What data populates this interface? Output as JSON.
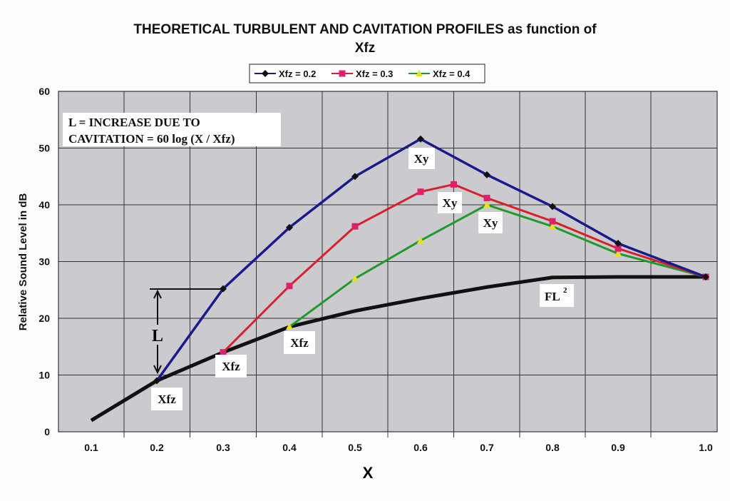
{
  "chart_data": {
    "type": "line",
    "title": "THEORETICAL TURBULENT AND CAVITATION PROFILES as function of",
    "title_line2": "Xfz",
    "xlabel": "X",
    "ylabel": "Relative Sound Level in dB",
    "ylim": [
      0,
      60
    ],
    "yticks": [
      "0",
      "10",
      "20",
      "30",
      "40",
      "50",
      "60"
    ],
    "xticks": [
      "0.1",
      "0.2",
      "0.3",
      "0.4",
      "0.5",
      "0.6",
      "0.7",
      "0.8",
      "0.9",
      "1.0"
    ],
    "grid": true,
    "legend_position": "top-center",
    "series": [
      {
        "name": "Xfz = 0.2",
        "color": "#1a1a8c",
        "marker": "diamond",
        "x": [
          0.2,
          0.3,
          0.4,
          0.5,
          0.6,
          0.7,
          0.8,
          0.9,
          1.0
        ],
        "y": [
          9,
          25.2,
          36,
          45,
          51.6,
          45.3,
          39.7,
          33.2,
          27.3
        ]
      },
      {
        "name": "Xfz = 0.3",
        "color": "#d8202a",
        "marker": "square",
        "x": [
          0.3,
          0.4,
          0.5,
          0.6,
          0.65,
          0.7,
          0.8,
          0.9,
          1.0
        ],
        "y": [
          14,
          25.7,
          36.2,
          42.3,
          43.6,
          41.2,
          37.1,
          32.3,
          27.3
        ]
      },
      {
        "name": "Xfz = 0.4",
        "color": "#1f9a2a",
        "marker": "triangle",
        "x": [
          0.4,
          0.5,
          0.6,
          0.7,
          0.8,
          0.9,
          1.0
        ],
        "y": [
          18.5,
          27,
          33.7,
          40,
          36.2,
          31.4,
          27.3
        ]
      },
      {
        "name": "FL2",
        "color": "#111111",
        "marker": "none",
        "x": [
          0.1,
          0.2,
          0.3,
          0.4,
          0.5,
          0.6,
          0.7,
          0.8,
          0.9,
          1.0
        ],
        "y": [
          2,
          9,
          14,
          18.5,
          21.3,
          23.5,
          25.5,
          27.2,
          27.3,
          27.3
        ]
      }
    ],
    "annotations": {
      "formula_line1": "L = INCREASE DUE TO",
      "formula_line2": "CAVITATION = 60 log (X / Xfz)",
      "xy_label": "Xy",
      "xfz_label": "Xfz",
      "fl_label": "FL",
      "fl_sup": "2",
      "l_label": "L"
    }
  }
}
